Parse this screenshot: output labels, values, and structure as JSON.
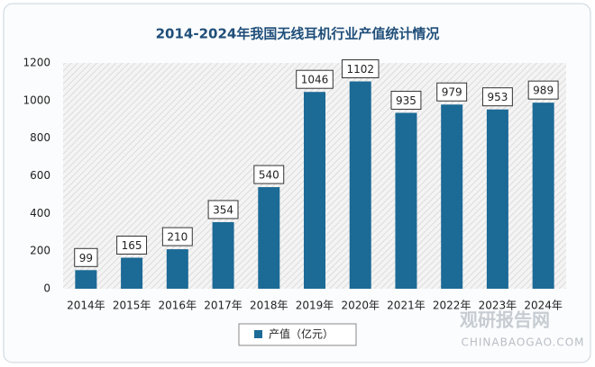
{
  "chart_data": {
    "type": "bar",
    "title": "2014-2024年我国无线耳机行业产值统计情况",
    "categories": [
      "2014年",
      "2015年",
      "2016年",
      "2017年",
      "2018年",
      "2019年",
      "2020年",
      "2021年",
      "2022年",
      "2023年",
      "2024年"
    ],
    "series": [
      {
        "name": "产值（亿元）",
        "color": "#1c6a96",
        "values": [
          99,
          165,
          210,
          354,
          540,
          1046,
          1102,
          935,
          979,
          953,
          989
        ]
      }
    ],
    "ylim": [
      0,
      1200
    ],
    "yticks": [
      0,
      200,
      400,
      600,
      800,
      1000,
      1200
    ],
    "grid": false,
    "legend": "bottom",
    "watermark": {
      "name": "观研报告网",
      "url": "CHINABAOGAO.COM"
    }
  }
}
